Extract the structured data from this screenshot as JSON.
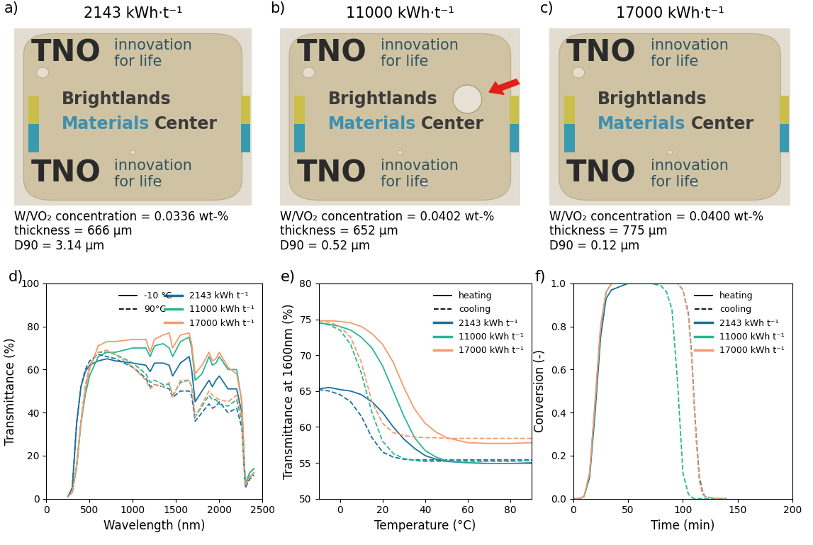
{
  "photos": [
    {
      "label": "a)",
      "title": "2143 kWh·t⁻¹",
      "caption": [
        "W/VO₂ concentration = 0.0336 wt-%",
        "thickness = 666 µm",
        "D90 = 3.14 µm"
      ]
    },
    {
      "label": "b)",
      "title": "11000 kWh·t⁻¹",
      "caption": [
        "W/VO₂ concentration = 0.0402 wt-%",
        "thickness = 652 µm",
        "D90 = 0.52 µm"
      ]
    },
    {
      "label": "c)",
      "title": "17000 kWh·t⁻¹",
      "caption": [
        "W/VO₂ concentration = 0.0400 wt-%",
        "thickness = 775 µm",
        "D90 = 0.12 µm"
      ]
    }
  ],
  "photo_texts": {
    "logo": "TNO",
    "slogan": [
      "innovation",
      "for life"
    ],
    "center": [
      "Brightlands",
      "Materials",
      "Center"
    ]
  },
  "chart_data": [
    {
      "label": "d)",
      "type": "line",
      "x_label": "Wavelength (nm)",
      "y_label": "Transmittance (%)",
      "xlim": [
        0,
        2500
      ],
      "xticks": [
        0,
        500,
        1000,
        1500,
        2000,
        2500
      ],
      "ylim": [
        0,
        100
      ],
      "yticks": [
        0,
        20,
        40,
        60,
        80,
        100
      ],
      "legend": "upper right",
      "style_legend": [
        {
          "name": "-10 °C",
          "line_style": "solid"
        },
        {
          "name": "90°C",
          "line_style": "dashed"
        }
      ],
      "x": [
        250,
        300,
        350,
        400,
        450,
        500,
        600,
        700,
        800,
        1000,
        1150,
        1200,
        1250,
        1350,
        1420,
        1460,
        1550,
        1650,
        1680,
        1720,
        1800,
        1880,
        1920,
        1960,
        2000,
        2100,
        2200,
        2260,
        2300,
        2350,
        2400
      ],
      "series": [
        {
          "name": "2143 kWh t⁻¹",
          "color": "#1a6fa0",
          "line_style": "solid",
          "values": [
            1,
            5,
            35,
            52,
            59,
            62,
            64,
            65,
            64,
            63,
            62,
            59,
            63,
            63,
            62,
            57,
            63,
            66,
            60,
            45,
            50,
            55,
            52,
            55,
            57,
            51,
            51,
            40,
            6,
            10,
            12
          ]
        },
        {
          "name": "11000 kWh t⁻¹",
          "color": "#2ab690",
          "line_style": "solid",
          "values": [
            1,
            3,
            15,
            35,
            48,
            57,
            66,
            68,
            68,
            70,
            70,
            66,
            71,
            72,
            70,
            66,
            73,
            75,
            70,
            55,
            58,
            66,
            62,
            63,
            66,
            60,
            60,
            45,
            7,
            12,
            14
          ]
        },
        {
          "name": "17000 kWh t⁻¹",
          "color": "#f59a6b",
          "line_style": "solid",
          "values": [
            1,
            3,
            15,
            35,
            50,
            60,
            71,
            73,
            73,
            74,
            74,
            68,
            74,
            76,
            77,
            70,
            76,
            77,
            72,
            58,
            62,
            68,
            64,
            65,
            68,
            61,
            58,
            45,
            6,
            10,
            12
          ]
        },
        {
          "name": "2143 kWh t⁻¹",
          "color": "#1a6fa0",
          "line_style": "dashed",
          "values": [
            1,
            5,
            35,
            52,
            60,
            64,
            67,
            66,
            65,
            61,
            56,
            52,
            53,
            52,
            51,
            47,
            50,
            50,
            48,
            36,
            40,
            44,
            42,
            43,
            45,
            40,
            42,
            33,
            5,
            9,
            11
          ]
        },
        {
          "name": "11000 kWh t⁻¹",
          "color": "#2ab690",
          "line_style": "dashed",
          "values": [
            1,
            3,
            15,
            36,
            52,
            62,
            68,
            68,
            67,
            63,
            58,
            54,
            55,
            53,
            53,
            48,
            54,
            55,
            52,
            38,
            43,
            48,
            46,
            46,
            44,
            43,
            46,
            36,
            6,
            12,
            14
          ]
        },
        {
          "name": "17000 kWh t⁻¹",
          "color": "#f59a6b",
          "line_style": "dashed",
          "values": [
            1,
            3,
            15,
            36,
            52,
            62,
            68,
            69,
            67,
            61,
            55,
            51,
            53,
            52,
            54,
            47,
            55,
            55,
            52,
            38,
            44,
            50,
            48,
            47,
            46,
            45,
            48,
            38,
            6,
            10,
            12
          ]
        }
      ]
    },
    {
      "label": "e)",
      "type": "line",
      "x_label": "Temperature (°C)",
      "y_label": "Transmittance at 1600nm (%)",
      "xlim": [
        -10,
        90
      ],
      "xticks": [
        0,
        20,
        40,
        60,
        80
      ],
      "ylim": [
        50,
        80
      ],
      "yticks": [
        50,
        55,
        60,
        65,
        70,
        75,
        80
      ],
      "legend": "upper right",
      "style_legend": [
        {
          "name": "heating",
          "line_style": "solid"
        },
        {
          "name": "cooling",
          "line_style": "dashed"
        }
      ],
      "x": [
        -10,
        -5,
        0,
        5,
        10,
        15,
        20,
        25,
        30,
        35,
        40,
        45,
        50,
        60,
        70,
        80,
        90
      ],
      "series": [
        {
          "name": "2143 kWh t⁻¹",
          "color": "#1a6fa0",
          "line_style": "solid",
          "values": [
            65.3,
            65.5,
            65.2,
            65,
            64.5,
            63.5,
            62,
            60,
            58.3,
            57,
            56,
            55.5,
            55.2,
            55,
            54.9,
            54.9,
            55
          ]
        },
        {
          "name": "2143 kWh t⁻¹",
          "color": "#1a6fa0",
          "line_style": "dashed",
          "values": [
            65.2,
            65,
            64.5,
            63.5,
            61.5,
            58.5,
            56.5,
            55.8,
            55.5,
            55.4,
            55.4,
            55.4,
            55.4,
            55.4,
            55.4,
            55.4,
            55.4
          ]
        },
        {
          "name": "11000 kWh t⁻¹",
          "color": "#2ab690",
          "line_style": "solid",
          "values": [
            74.5,
            74.3,
            74,
            73.5,
            72.5,
            71,
            68.5,
            65,
            61.5,
            58.5,
            56.7,
            55.8,
            55.3,
            55,
            54.9,
            54.9,
            54.9
          ]
        },
        {
          "name": "11000 kWh t⁻¹",
          "color": "#2ab690",
          "line_style": "dashed",
          "values": [
            74.5,
            74.2,
            73.5,
            71.5,
            67.5,
            62,
            58,
            56.3,
            55.6,
            55.3,
            55.2,
            55.2,
            55.2,
            55.2,
            55.2,
            55.2,
            55.3
          ]
        },
        {
          "name": "17000 kWh t⁻¹",
          "color": "#f59a6b",
          "line_style": "solid",
          "values": [
            74.8,
            74.8,
            74.7,
            74.5,
            74,
            73,
            71.5,
            69,
            65.5,
            62.5,
            60.5,
            59.3,
            58.5,
            57.8,
            57.7,
            57.7,
            57.8
          ]
        },
        {
          "name": "17000 kWh t⁻¹",
          "color": "#f59a6b",
          "line_style": "dashed",
          "values": [
            74.8,
            74.6,
            74,
            72.5,
            69,
            63.5,
            60.5,
            59.2,
            58.8,
            58.6,
            58.5,
            58.5,
            58.4,
            58.4,
            58.4,
            58.4,
            58.4
          ]
        }
      ]
    },
    {
      "label": "f)",
      "type": "line",
      "x_label": "Time (min)",
      "y_label": "Conversion (-)",
      "xlim": [
        0,
        200
      ],
      "xticks": [
        0,
        50,
        100,
        150,
        200
      ],
      "ylim": [
        0,
        1.0
      ],
      "yticks": [
        {
          "value": 0,
          "label": "0.0"
        },
        {
          "value": 0.2,
          "label": "0.2"
        },
        {
          "value": 0.4,
          "label": "0.4"
        },
        {
          "value": 0.6,
          "label": "0.6"
        },
        {
          "value": 0.8,
          "label": "0.8"
        },
        {
          "value": 1.0,
          "label": "1.0"
        }
      ],
      "legend": "upper right",
      "style_legend": [
        {
          "name": "heating",
          "line_style": "solid"
        },
        {
          "name": "cooling",
          "line_style": "dashed"
        }
      ],
      "series": [
        {
          "name": "2143 kWh t⁻¹",
          "color": "#1a6fa0",
          "line_style": "solid",
          "x": [
            0,
            5,
            10,
            15,
            20,
            25,
            30,
            35,
            40,
            45,
            50,
            55
          ],
          "values": [
            0,
            0,
            0.01,
            0.1,
            0.4,
            0.75,
            0.93,
            0.97,
            0.98,
            0.99,
            1.0,
            1.0
          ]
        },
        {
          "name": "2143 kWh t⁻¹",
          "color": "#1a6fa0",
          "line_style": "dashed",
          "x": [
            55,
            80,
            95,
            100,
            105,
            108,
            110,
            112,
            115,
            118,
            120,
            130,
            140
          ],
          "values": [
            1,
            1,
            1,
            0.97,
            0.86,
            0.67,
            0.47,
            0.3,
            0.1,
            0.03,
            0.01,
            0,
            0
          ]
        },
        {
          "name": "11000 kWh t⁻¹",
          "color": "#2ab690",
          "line_style": "solid",
          "x": [
            0,
            5,
            10,
            15,
            20,
            25,
            30,
            35,
            40,
            45,
            50,
            55
          ],
          "values": [
            0,
            0,
            0.01,
            0.12,
            0.45,
            0.8,
            0.96,
            1.0,
            1.0,
            1.0,
            1.0,
            1.0
          ]
        },
        {
          "name": "11000 kWh t⁻¹",
          "color": "#2ab690",
          "line_style": "dashed",
          "x": [
            55,
            70,
            80,
            85,
            90,
            95,
            100,
            105,
            110,
            120,
            140
          ],
          "values": [
            1,
            1,
            0.99,
            0.96,
            0.88,
            0.55,
            0.12,
            0.02,
            0,
            0,
            0
          ]
        },
        {
          "name": "17000 kWh t⁻¹",
          "color": "#f59a6b",
          "line_style": "solid",
          "x": [
            0,
            5,
            10,
            15,
            20,
            25,
            30,
            35,
            40,
            45,
            50,
            55
          ],
          "values": [
            0,
            0,
            0.01,
            0.12,
            0.45,
            0.8,
            0.96,
            1.0,
            1.0,
            1.0,
            1.0,
            1.0
          ]
        },
        {
          "name": "17000 kWh t⁻¹",
          "color": "#f59a6b",
          "line_style": "dashed",
          "x": [
            55,
            80,
            95,
            100,
            105,
            108,
            110,
            112,
            115,
            118,
            120,
            130,
            140
          ],
          "values": [
            1,
            1,
            1,
            0.97,
            0.85,
            0.65,
            0.45,
            0.28,
            0.08,
            0.02,
            0.01,
            0,
            0
          ]
        }
      ]
    }
  ]
}
